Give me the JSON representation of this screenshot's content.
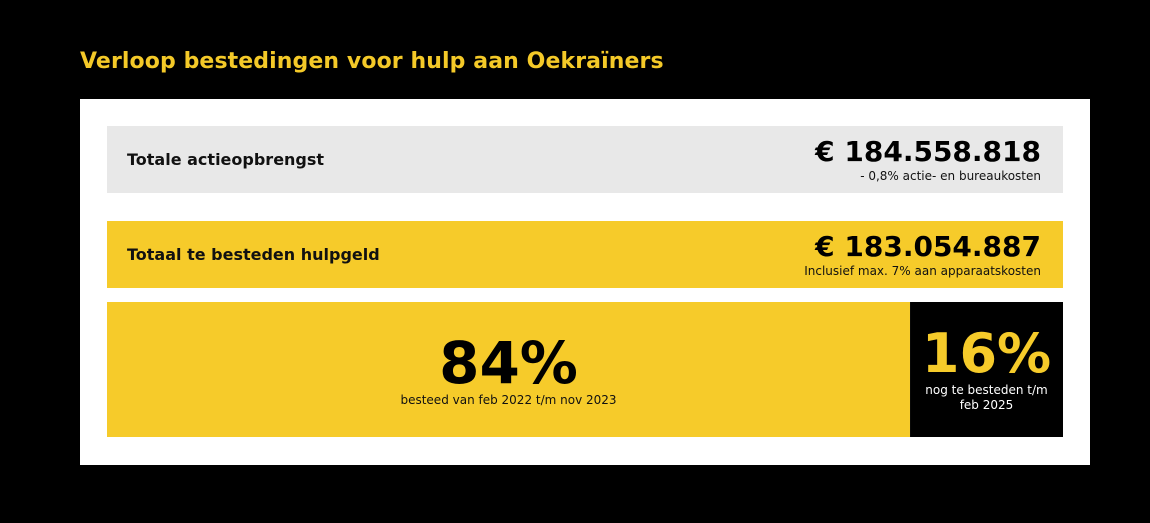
{
  "title": "Verloop bestedingen voor hulp aan Oekraïners",
  "rows": {
    "total": {
      "label": "Totale actieopbrengst",
      "amount": "€ 184.558.818",
      "note": "- 0,8% actie- en bureaukosten"
    },
    "hulp": {
      "label": "Totaal te besteden hulpgeld",
      "amount": "€ 183.054.887",
      "note": "Inclusief max. 7% aan apparaatskosten"
    }
  },
  "chart_data": {
    "type": "bar",
    "stacked": true,
    "orientation": "horizontal",
    "series": [
      {
        "label": "84%",
        "value": 84,
        "description": "besteed van feb 2022 t/m nov 2023",
        "color": "#f6cb2a"
      },
      {
        "label": "16%",
        "value": 16,
        "description": "nog te besteden t/m feb 2025",
        "color": "#000000"
      }
    ]
  }
}
